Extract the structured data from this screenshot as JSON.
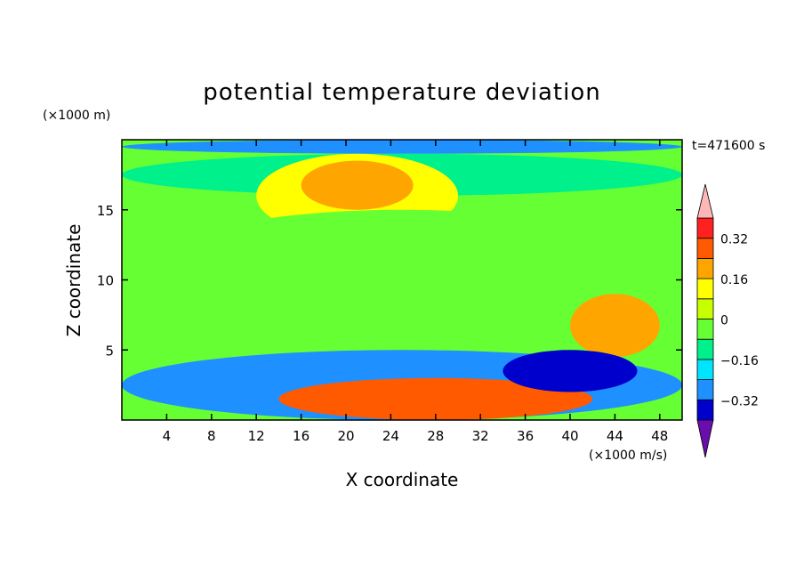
{
  "chart_data": {
    "type": "heatmap",
    "title": "potential temperature deviation",
    "xlabel": "X coordinate",
    "ylabel": "Z coordinate",
    "x_unit": "(×1000 m/s)",
    "y_unit": "(×1000 m)",
    "time_label": "t=471600 s",
    "xlim": [
      0,
      50
    ],
    "ylim": [
      0,
      20
    ],
    "x_ticks": [
      4,
      8,
      12,
      16,
      20,
      24,
      28,
      32,
      36,
      40,
      44,
      48
    ],
    "y_ticks": [
      5,
      10,
      15
    ],
    "colorbar": {
      "levels": [
        -0.4,
        -0.32,
        -0.24,
        -0.16,
        -0.08,
        0,
        0.08,
        0.16,
        0.24,
        0.32,
        0.4
      ],
      "labels": [
        "0.32",
        "0.16",
        "0",
        "−0.16",
        "−0.32"
      ],
      "label_values": [
        0.32,
        0.16,
        0,
        -0.16,
        -0.32
      ],
      "colors": [
        "#6a0dad",
        "#0000cd",
        "#1e90ff",
        "#00e5ff",
        "#00f08c",
        "#66ff33",
        "#c8ff00",
        "#ffff00",
        "#ffa500",
        "#ff5a00",
        "#ff2020",
        "#ffb6b6"
      ]
    },
    "features": [
      {
        "x0": 0,
        "x1": 50,
        "z0": 19,
        "z1": 20,
        "value": -0.32
      },
      {
        "x0": 0,
        "x1": 50,
        "z0": 16,
        "z1": 19,
        "value": -0.12
      },
      {
        "x0": 12,
        "x1": 30,
        "z0": 13,
        "z1": 19,
        "value": 0.1
      },
      {
        "x0": 16,
        "x1": 26,
        "z0": 15,
        "z1": 18.5,
        "value": 0.18
      },
      {
        "x0": 17,
        "x1": 25,
        "z0": 16,
        "z1": 18,
        "value": 0.22
      },
      {
        "x0": 0,
        "x1": 50,
        "z0": 5,
        "z1": 15,
        "value": -0.02
      },
      {
        "x0": 40,
        "x1": 48,
        "z0": 4.5,
        "z1": 9,
        "value": 0.16
      },
      {
        "x0": 0,
        "x1": 50,
        "z0": 0,
        "z1": 5,
        "value": -0.3
      },
      {
        "x0": 14,
        "x1": 42,
        "z0": 0,
        "z1": 3,
        "value": 0.3
      },
      {
        "x0": 34,
        "x1": 46,
        "z0": 2,
        "z1": 5,
        "value": -0.4
      }
    ]
  }
}
